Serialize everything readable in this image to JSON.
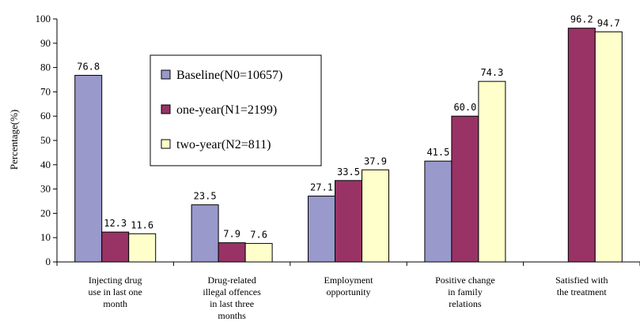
{
  "chart_data": {
    "type": "bar",
    "title": "",
    "xlabel": "",
    "ylabel": "Percentage(%)",
    "ylim": [
      0,
      100
    ],
    "yticks": [
      0,
      10,
      20,
      30,
      40,
      50,
      60,
      70,
      80,
      90,
      100
    ],
    "grid": false,
    "legend_position": "upper-left-center",
    "categories": [
      [
        "Injecting drug",
        "use in last one",
        "month"
      ],
      [
        "Drug-related",
        "illegal offences",
        "in last three",
        "months"
      ],
      [
        "Employment",
        "opportunity"
      ],
      [
        "Positive change",
        "in family",
        "relations"
      ],
      [
        "Satisfied with",
        "the treatment"
      ]
    ],
    "series": [
      {
        "name": "Baseline(N0=10657)",
        "color": "#9999CC",
        "values": [
          76.8,
          23.5,
          27.1,
          41.5,
          null
        ],
        "labels": [
          "76.8",
          "23.5",
          "27.1",
          "41.5",
          null
        ]
      },
      {
        "name": "one-year(N1=2199)",
        "color": "#993366",
        "values": [
          12.3,
          7.9,
          33.5,
          60.0,
          96.2
        ],
        "labels": [
          "12.3",
          "7.9",
          "33.5",
          "60.0",
          "96.2"
        ]
      },
      {
        "name": "two-year(N2=811)",
        "color": "#FFFFCC",
        "values": [
          11.6,
          7.6,
          37.9,
          74.3,
          94.7
        ],
        "labels": [
          "11.6",
          "7.6",
          "37.9",
          "74.3",
          "94.7"
        ]
      }
    ]
  }
}
